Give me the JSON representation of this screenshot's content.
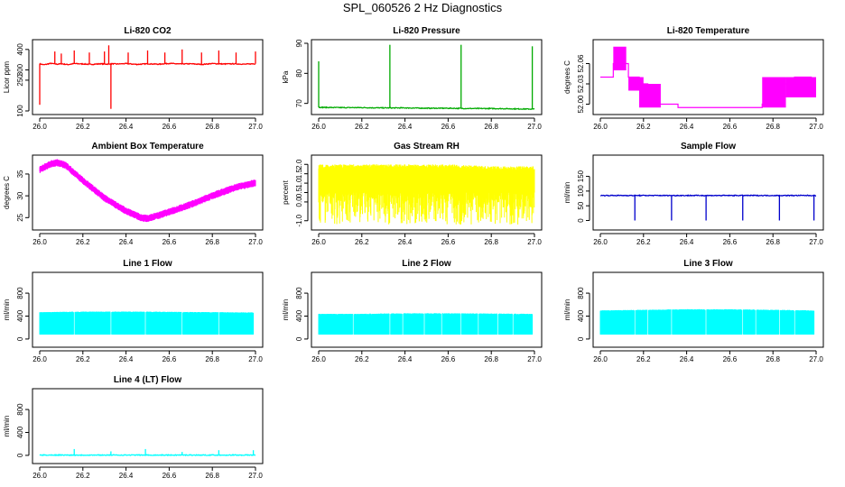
{
  "figure": {
    "title": "SPL_060526  2 Hz Diagnostics"
  },
  "chart_data": [
    {
      "type": "line",
      "title": "Li-820 CO2",
      "xlabel": "",
      "ylabel": "Licor ppm",
      "color": "#ff0000",
      "xlim": [
        26.0,
        27.0
      ],
      "ylim": [
        100,
        430
      ],
      "xticks": [
        "26.0",
        "26.2",
        "26.4",
        "26.6",
        "26.8",
        "27.0"
      ],
      "yticks": [
        "100",
        "250",
        "300",
        "400"
      ],
      "ytick_values": [
        100,
        250,
        300,
        400
      ],
      "series": [
        {
          "name": "CO2",
          "x": [
            26.0,
            26.02,
            26.05,
            26.08,
            26.1,
            26.13,
            26.16,
            26.2,
            26.24,
            26.28,
            26.32,
            26.33,
            26.36,
            26.4,
            26.45,
            26.5,
            26.55,
            26.6,
            26.65,
            26.7,
            26.75,
            26.8,
            26.85,
            26.9,
            26.95,
            26.99
          ],
          "y": [
            330,
            325,
            332,
            328,
            330,
            326,
            331,
            329,
            327,
            330,
            328,
            330,
            329,
            331,
            327,
            330,
            328,
            332,
            329,
            330,
            327,
            331,
            329,
            330,
            328,
            330
          ]
        }
      ],
      "spikes": [
        {
          "x": 26.0,
          "y": 130
        },
        {
          "x": 26.07,
          "y": 390
        },
        {
          "x": 26.1,
          "y": 380
        },
        {
          "x": 26.16,
          "y": 395
        },
        {
          "x": 26.23,
          "y": 385
        },
        {
          "x": 26.3,
          "y": 390
        },
        {
          "x": 26.32,
          "y": 420
        },
        {
          "x": 26.33,
          "y": 110
        },
        {
          "x": 26.41,
          "y": 385
        },
        {
          "x": 26.5,
          "y": 395
        },
        {
          "x": 26.58,
          "y": 385
        },
        {
          "x": 26.66,
          "y": 400
        },
        {
          "x": 26.75,
          "y": 385
        },
        {
          "x": 26.83,
          "y": 395
        },
        {
          "x": 26.91,
          "y": 385
        },
        {
          "x": 27.0,
          "y": 390
        }
      ]
    },
    {
      "type": "line",
      "title": "Li-820 Pressure",
      "xlabel": "",
      "ylabel": "kPa",
      "color": "#00aa00",
      "xlim": [
        26.0,
        27.0
      ],
      "ylim": [
        67.5,
        90
      ],
      "xticks": [
        "26.0",
        "26.2",
        "26.4",
        "26.6",
        "26.8",
        "27.0"
      ],
      "yticks": [
        "70",
        "80",
        "90"
      ],
      "ytick_values": [
        70,
        80,
        90
      ],
      "series": [
        {
          "name": "Pressure",
          "x": [
            26.0,
            26.1,
            26.2,
            26.3,
            26.4,
            26.5,
            26.6,
            26.7,
            26.8,
            26.9,
            27.0
          ],
          "y": [
            68.7,
            68.6,
            68.6,
            68.5,
            68.5,
            68.4,
            68.4,
            68.3,
            68.3,
            68.2,
            68.1
          ]
        }
      ],
      "spikes": [
        {
          "x": 26.0,
          "y": 84
        },
        {
          "x": 26.33,
          "y": 89.5
        },
        {
          "x": 26.66,
          "y": 89.5
        },
        {
          "x": 26.99,
          "y": 89
        }
      ]
    },
    {
      "type": "step",
      "title": "Li-820 Temperature",
      "xlabel": "",
      "ylabel": "degrees C",
      "color": "#ff00ff",
      "xlim": [
        26.0,
        27.0
      ],
      "ylim": [
        51.99,
        52.09
      ],
      "xticks": [
        "26.0",
        "26.2",
        "26.4",
        "26.6",
        "26.8",
        "27.0"
      ],
      "yticks": [
        "52.00",
        "52.03",
        "52.06"
      ],
      "ytick_values": [
        52.0,
        52.03,
        52.06
      ],
      "series": [
        {
          "name": "Temperature",
          "x": [
            26.0,
            26.05,
            26.06,
            26.08,
            26.1,
            26.13,
            26.18,
            26.22,
            26.26,
            26.3,
            26.36,
            26.5,
            26.6,
            26.7,
            26.75,
            26.78,
            26.82,
            26.9,
            26.98
          ],
          "y": [
            52.04,
            52.04,
            52.06,
            52.08,
            52.06,
            52.04,
            52.03,
            52.01,
            52.0,
            52.0,
            51.995,
            51.995,
            51.995,
            51.995,
            52.0,
            52.01,
            52.03,
            52.04,
            52.04
          ]
        }
      ],
      "bands": [
        {
          "x0": 26.06,
          "x1": 26.12,
          "lo": 52.05,
          "hi": 52.085
        },
        {
          "x0": 26.13,
          "x1": 26.2,
          "lo": 52.02,
          "hi": 52.04
        },
        {
          "x0": 26.18,
          "x1": 26.28,
          "lo": 51.995,
          "hi": 52.03
        },
        {
          "x0": 26.75,
          "x1": 26.86,
          "lo": 51.995,
          "hi": 52.04
        },
        {
          "x0": 26.86,
          "x1": 27.0,
          "lo": 52.01,
          "hi": 52.04
        }
      ]
    },
    {
      "type": "line",
      "title": "Ambient Box Temperature",
      "xlabel": "",
      "ylabel": "degrees C",
      "color": "#ff00ff",
      "xlim": [
        26.0,
        27.0
      ],
      "ylim": [
        23,
        38.5
      ],
      "xticks": [
        "26.0",
        "26.2",
        "26.4",
        "26.6",
        "26.8",
        "27.0"
      ],
      "yticks": [
        "25",
        "30",
        "35"
      ],
      "ytick_values": [
        25,
        30,
        35
      ],
      "series": [
        {
          "name": "Ambient",
          "x": [
            26.0,
            26.05,
            26.08,
            26.12,
            26.2,
            26.3,
            26.4,
            26.47,
            26.5,
            26.55,
            26.6,
            26.7,
            26.8,
            26.9,
            27.0
          ],
          "y": [
            36.0,
            37.3,
            37.6,
            37.0,
            33.5,
            29.5,
            26.5,
            25.0,
            24.8,
            25.5,
            26.3,
            28.0,
            30.0,
            31.8,
            33.0
          ]
        }
      ],
      "band_half_width": 0.7
    },
    {
      "type": "area",
      "title": "Gas Stream RH",
      "xlabel": "",
      "ylabel": "percent",
      "color": "#ffff00",
      "xlim": [
        26.0,
        27.0
      ],
      "ylim": [
        -1.3,
        2.3
      ],
      "xticks": [
        "26.0",
        "26.2",
        "26.4",
        "26.6",
        "26.8",
        "27.0"
      ],
      "yticks": [
        "-1.0",
        "0.0",
        "0.5",
        "1.0",
        "1.5",
        "2.0"
      ],
      "ytick_values": [
        -1.0,
        0.0,
        0.5,
        1.0,
        1.5,
        2.0
      ],
      "series": [
        {
          "name": "RH",
          "x": [
            26.0,
            26.2,
            26.4,
            26.6,
            26.8,
            27.0
          ],
          "y_high": [
            2.0,
            2.0,
            2.0,
            2.0,
            1.9,
            1.9
          ],
          "y_low": [
            0.5,
            0.5,
            0.5,
            0.5,
            0.5,
            0.5
          ]
        }
      ]
    },
    {
      "type": "line",
      "title": "Sample Flow",
      "xlabel": "",
      "ylabel": "ml/min",
      "color": "#0000cc",
      "xlim": [
        26.0,
        27.0
      ],
      "ylim": [
        -20,
        210
      ],
      "xticks": [
        "26.0",
        "26.2",
        "26.4",
        "26.6",
        "26.8",
        "27.0"
      ],
      "yticks": [
        "0",
        "50",
        "100",
        "150"
      ],
      "ytick_values": [
        0,
        50,
        100,
        150
      ],
      "series": [
        {
          "name": "Sample",
          "x": [
            26.0,
            26.2,
            26.4,
            26.6,
            26.8,
            27.0
          ],
          "y": [
            85,
            85,
            85,
            85,
            85,
            85
          ]
        }
      ],
      "spikes": [
        {
          "x": 26.16,
          "y": 0
        },
        {
          "x": 26.33,
          "y": 0
        },
        {
          "x": 26.49,
          "y": 0
        },
        {
          "x": 26.66,
          "y": 0
        },
        {
          "x": 26.83,
          "y": 0
        },
        {
          "x": 26.99,
          "y": 0
        }
      ]
    },
    {
      "type": "area",
      "title": "Line 1 Flow",
      "xlabel": "",
      "ylabel": "ml/min",
      "color": "#00ffff",
      "xlim": [
        26.0,
        27.0
      ],
      "ylim": [
        -80,
        1100
      ],
      "xticks": [
        "26.0",
        "26.2",
        "26.4",
        "26.6",
        "26.8",
        "27.0"
      ],
      "yticks": [
        "0",
        "400",
        "800"
      ],
      "ytick_values": [
        0,
        400,
        800
      ],
      "series": [
        {
          "name": "Line1",
          "x": [
            26.0,
            26.2,
            26.4,
            26.6,
            26.8,
            26.99
          ],
          "y_high": [
            470,
            480,
            480,
            475,
            470,
            465
          ],
          "y_low": [
            80,
            80,
            80,
            80,
            80,
            80
          ]
        }
      ],
      "gaps": [
        26.16,
        26.33,
        26.49,
        26.66,
        26.83
      ]
    },
    {
      "type": "area",
      "title": "Line 2 Flow",
      "xlabel": "",
      "ylabel": "ml/min",
      "color": "#00ffff",
      "xlim": [
        26.0,
        27.0
      ],
      "ylim": [
        -80,
        1100
      ],
      "xticks": [
        "26.0",
        "26.2",
        "26.4",
        "26.6",
        "26.8",
        "27.0"
      ],
      "yticks": [
        "0",
        "400",
        "800"
      ],
      "ytick_values": [
        0,
        400,
        800
      ],
      "series": [
        {
          "name": "Line2",
          "x": [
            26.0,
            26.2,
            26.4,
            26.6,
            26.8,
            26.99
          ],
          "y_high": [
            440,
            440,
            450,
            450,
            445,
            440
          ],
          "y_low": [
            80,
            80,
            80,
            80,
            80,
            80
          ]
        }
      ],
      "gaps": [
        26.16,
        26.33,
        26.39,
        26.49,
        26.57,
        26.66,
        26.74,
        26.83,
        26.9
      ]
    },
    {
      "type": "area",
      "title": "Line 3 Flow",
      "xlabel": "",
      "ylabel": "ml/min",
      "color": "#00ffff",
      "xlim": [
        26.0,
        27.0
      ],
      "ylim": [
        -80,
        1100
      ],
      "xticks": [
        "26.0",
        "26.2",
        "26.4",
        "26.6",
        "26.8",
        "27.0"
      ],
      "yticks": [
        "0",
        "400",
        "800"
      ],
      "ytick_values": [
        0,
        400,
        800
      ],
      "series": [
        {
          "name": "Line3",
          "x": [
            26.0,
            26.2,
            26.4,
            26.6,
            26.8,
            26.99
          ],
          "y_high": [
            500,
            510,
            520,
            520,
            510,
            500
          ],
          "y_low": [
            80,
            80,
            80,
            80,
            80,
            80
          ]
        }
      ],
      "gaps": [
        26.16,
        26.22,
        26.33,
        26.49,
        26.66,
        26.72,
        26.83,
        26.9
      ]
    },
    {
      "type": "line",
      "title": "Line 4 (LT) Flow",
      "xlabel": "",
      "ylabel": "ml/min",
      "color": "#00ffff",
      "xlim": [
        26.0,
        27.0
      ],
      "ylim": [
        -80,
        1100
      ],
      "xticks": [
        "26.0",
        "26.2",
        "26.4",
        "26.6",
        "26.8",
        "27.0"
      ],
      "yticks": [
        "0",
        "400",
        "800"
      ],
      "ytick_values": [
        0,
        400,
        800
      ],
      "series": [
        {
          "name": "Line4",
          "x": [
            26.0,
            26.2,
            26.4,
            26.6,
            26.8,
            27.0
          ],
          "y": [
            5,
            5,
            5,
            5,
            5,
            5
          ]
        }
      ],
      "spikes": [
        {
          "x": 26.16,
          "y": 110
        },
        {
          "x": 26.33,
          "y": 70
        },
        {
          "x": 26.49,
          "y": 110
        },
        {
          "x": 26.66,
          "y": 60
        },
        {
          "x": 26.83,
          "y": 90
        },
        {
          "x": 26.99,
          "y": 90
        }
      ]
    }
  ]
}
